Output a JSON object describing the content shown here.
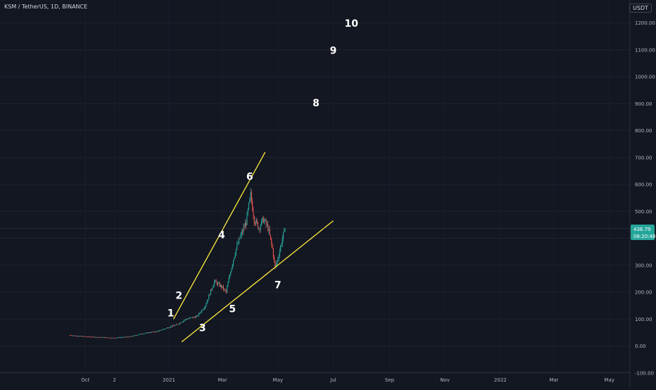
{
  "header": {
    "symbol_title": "KSM / TetherUS, 1D, BINANCE",
    "currency": "USDT"
  },
  "price_badge": {
    "price": "436.79",
    "countdown": "08:20:48",
    "color": "#26a69a"
  },
  "chart_data": {
    "type": "candlestick",
    "y_ticks": [
      "1200.00",
      "1100.00",
      "1000.00",
      "900.00",
      "800.00",
      "700.00",
      "600.00",
      "500.00",
      "400.00",
      "300.00",
      "200.00",
      "100.00",
      "0.00",
      "-100.00"
    ],
    "y_tick_values": [
      1200,
      1100,
      1000,
      900,
      800,
      700,
      600,
      500,
      400,
      300,
      200,
      100,
      0,
      -100
    ],
    "x_ticks": [
      "Oct",
      "2",
      "2021",
      "Mar",
      "May",
      "Jul",
      "Sep",
      "Nov",
      "2022",
      "Mar",
      "May"
    ],
    "x_tick_dates": [
      "2020-10-01",
      "2020-11-02",
      "2021-01-01",
      "2021-03-01",
      "2021-05-01",
      "2021-07-01",
      "2021-09-01",
      "2021-11-01",
      "2022-01-01",
      "2022-03-01",
      "2022-05-01"
    ],
    "last_price": 436.79,
    "up_color": "#26a69a",
    "down_color": "#ef5350",
    "price_path": [
      [
        "2020-09-13",
        40
      ],
      [
        "2020-10-01",
        35
      ],
      [
        "2020-11-01",
        30
      ],
      [
        "2020-11-20",
        35
      ],
      [
        "2020-12-01",
        45
      ],
      [
        "2020-12-20",
        55
      ],
      [
        "2021-01-01",
        70
      ],
      [
        "2021-01-10",
        80
      ],
      [
        "2021-01-20",
        100
      ],
      [
        "2021-02-01",
        110
      ],
      [
        "2021-02-10",
        150
      ],
      [
        "2021-02-20",
        240
      ],
      [
        "2021-02-28",
        220
      ],
      [
        "2021-03-05",
        200
      ],
      [
        "2021-03-10",
        280
      ],
      [
        "2021-03-15",
        350
      ],
      [
        "2021-03-20",
        400
      ],
      [
        "2021-03-27",
        460
      ],
      [
        "2021-04-01",
        560
      ],
      [
        "2021-04-05",
        470
      ],
      [
        "2021-04-10",
        440
      ],
      [
        "2021-04-15",
        470
      ],
      [
        "2021-04-20",
        440
      ],
      [
        "2021-04-25",
        360
      ],
      [
        "2021-04-28",
        290
      ],
      [
        "2021-05-02",
        340
      ],
      [
        "2021-05-06",
        400
      ],
      [
        "2021-05-09",
        437
      ]
    ],
    "trendlines": [
      {
        "from": [
          "2021-01-06",
          100
        ],
        "to": [
          "2021-04-17",
          720
        ],
        "color": "#ffeb3b"
      },
      {
        "from": [
          "2021-01-15",
          15
        ],
        "to": [
          "2021-07-01",
          465
        ],
        "color": "#ffeb3b"
      }
    ],
    "wave_labels": [
      {
        "text": "1",
        "at": [
          "2021-01-03",
          110
        ]
      },
      {
        "text": "2",
        "at": [
          "2021-01-12",
          175
        ]
      },
      {
        "text": "3",
        "at": [
          "2021-02-07",
          55
        ]
      },
      {
        "text": "4",
        "at": [
          "2021-02-28",
          400
        ]
      },
      {
        "text": "5",
        "at": [
          "2021-03-12",
          125
        ]
      },
      {
        "text": "6",
        "at": [
          "2021-03-31",
          617
        ]
      },
      {
        "text": "7",
        "at": [
          "2021-05-01",
          215
        ]
      },
      {
        "text": "8",
        "at": [
          "2021-06-12",
          890
        ]
      },
      {
        "text": "9",
        "at": [
          "2021-07-01",
          1085
        ]
      },
      {
        "text": "10",
        "at": [
          "2021-07-21",
          1185
        ]
      }
    ]
  }
}
